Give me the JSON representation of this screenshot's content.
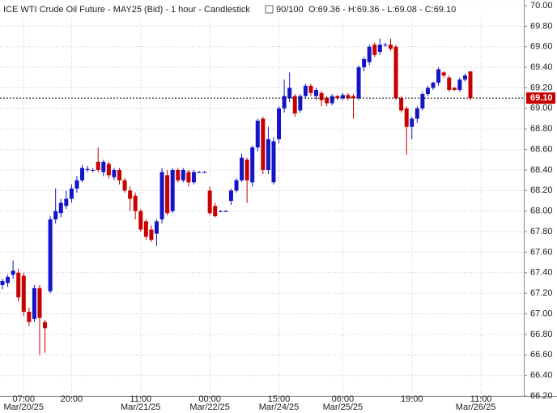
{
  "chart_data": {
    "type": "candlestick",
    "title": "ICE WTI Crude Oil Future - MAY25 (Bid) - 1 hour - Candlestick",
    "counter": "90/100",
    "ohlc_text": "O:69.36 - H:69.36 - L:69.08 - C:69.10",
    "categories": [
      null,
      null,
      null,
      null,
      "07:00",
      null,
      null,
      null,
      null,
      null,
      null,
      null,
      null,
      "20:00",
      null,
      null,
      null,
      null,
      null,
      null,
      null,
      null,
      null,
      null,
      null,
      null,
      "11:00",
      null,
      null,
      null,
      null,
      null,
      null,
      null,
      null,
      null,
      null,
      null,
      null,
      "00:00",
      null,
      null,
      null,
      null,
      null,
      null,
      null,
      null,
      null,
      null,
      null,
      null,
      "15:00",
      null,
      null,
      null,
      null,
      null,
      null,
      null,
      null,
      null,
      null,
      null,
      "06:00",
      null,
      null,
      null,
      null,
      null,
      null,
      null,
      null,
      null,
      null,
      null,
      null,
      "19:00",
      null,
      null,
      null,
      null,
      null,
      null,
      null,
      null,
      null,
      null,
      null,
      null,
      "11:00"
    ],
    "date_labels": [
      null,
      null,
      null,
      null,
      "Mar/20/25",
      null,
      null,
      null,
      null,
      null,
      null,
      null,
      null,
      null,
      null,
      null,
      null,
      null,
      null,
      null,
      null,
      null,
      null,
      null,
      null,
      null,
      "Mar/21/25",
      null,
      null,
      null,
      null,
      null,
      null,
      null,
      null,
      null,
      null,
      null,
      null,
      "Mar/22/25",
      null,
      null,
      null,
      null,
      null,
      null,
      null,
      null,
      null,
      null,
      null,
      null,
      "Mar/24/25",
      null,
      null,
      null,
      null,
      null,
      null,
      null,
      null,
      null,
      null,
      null,
      "Mar/25/25",
      null,
      null,
      null,
      null,
      null,
      null,
      null,
      null,
      null,
      null,
      null,
      null,
      null,
      null,
      null,
      null,
      null,
      null,
      null,
      null,
      null,
      null,
      null,
      null,
      "Mar/26/25"
    ],
    "open": [
      67.28,
      67.3,
      67.38,
      67.4,
      67.37,
      67.02,
      66.95,
      67.25,
      66.92,
      67.22,
      67.92,
      67.98,
      68.05,
      68.12,
      68.22,
      68.3,
      68.4,
      68.4,
      68.48,
      68.38,
      68.46,
      68.33,
      68.4,
      68.3,
      68.2,
      68.15,
      68.0,
      67.9,
      67.82,
      67.78,
      67.92,
      68.35,
      68.0,
      68.4,
      68.3,
      68.38,
      68.28,
      68.38,
      68.38,
      68.2,
      68.05,
      68.0,
      68.0,
      68.1,
      68.2,
      68.3,
      68.5,
      68.28,
      68.62,
      68.9,
      68.4,
      68.28,
      68.7,
      69.0,
      69.1,
      69.12,
      68.98,
      69.12,
      69.22,
      69.12,
      69.15,
      69.1,
      69.05,
      69.12,
      69.1,
      69.13,
      69.12,
      69.1,
      69.4,
      69.45,
      69.62,
      69.55,
      69.62,
      69.62,
      69.6,
      69.1,
      69.0,
      68.82,
      68.9,
      69.0,
      69.14,
      69.2,
      69.25,
      69.35,
      69.3,
      69.2,
      69.18,
      69.28,
      69.36,
      null,
      null
    ],
    "high": [
      67.34,
      67.38,
      67.52,
      67.44,
      67.4,
      67.06,
      67.28,
      67.28,
      66.94,
      67.95,
      68.22,
      68.12,
      68.2,
      68.26,
      68.34,
      68.45,
      68.44,
      68.42,
      68.62,
      68.5,
      68.48,
      68.42,
      68.42,
      68.32,
      68.24,
      68.18,
      68.02,
      67.92,
      67.86,
      67.92,
      68.42,
      68.4,
      68.42,
      68.42,
      68.42,
      68.4,
      68.4,
      68.39,
      68.39,
      68.24,
      68.08,
      68.01,
      68.01,
      68.22,
      68.32,
      68.56,
      68.52,
      68.64,
      68.9,
      68.92,
      68.82,
      68.72,
      69.02,
      69.28,
      69.35,
      69.14,
      69.14,
      69.24,
      69.24,
      69.2,
      69.17,
      69.12,
      69.14,
      69.13,
      69.15,
      69.15,
      69.14,
      69.42,
      69.5,
      69.62,
      69.64,
      69.68,
      69.64,
      69.68,
      69.62,
      69.12,
      69.02,
      68.92,
      69.02,
      69.16,
      69.22,
      69.26,
      69.4,
      69.36,
      69.32,
      69.21,
      69.3,
      69.34,
      69.36,
      null,
      null
    ],
    "low": [
      67.24,
      67.26,
      67.34,
      67.12,
      66.98,
      66.88,
      66.92,
      66.6,
      66.62,
      67.2,
      67.88,
      67.94,
      68.02,
      68.08,
      68.18,
      68.28,
      68.38,
      68.38,
      68.38,
      68.34,
      68.32,
      68.3,
      68.26,
      68.18,
      68.0,
      67.92,
      67.8,
      67.72,
      67.7,
      67.66,
      67.88,
      67.96,
      67.98,
      68.28,
      68.28,
      68.24,
      68.26,
      68.37,
      68.37,
      67.96,
      67.94,
      67.99,
      67.99,
      68.06,
      68.18,
      68.28,
      68.08,
      68.24,
      68.58,
      68.36,
      68.36,
      68.26,
      68.66,
      68.96,
      69.06,
      68.92,
      68.96,
      69.1,
      69.12,
      69.08,
      69.02,
      69.02,
      69.03,
      69.08,
      69.08,
      69.08,
      68.9,
      69.08,
      69.36,
      69.42,
      69.5,
      69.52,
      69.6,
      69.56,
      69.08,
      68.96,
      68.55,
      68.7,
      68.86,
      68.98,
      69.12,
      69.18,
      69.22,
      69.3,
      69.16,
      69.17,
      69.16,
      69.26,
      69.08,
      null,
      null
    ],
    "close": [
      67.32,
      67.36,
      67.42,
      67.16,
      67.02,
      66.92,
      67.25,
      66.96,
      66.86,
      67.92,
      68.0,
      68.08,
      68.12,
      68.22,
      68.3,
      68.42,
      68.41,
      68.4,
      68.4,
      68.48,
      68.35,
      68.4,
      68.3,
      68.2,
      68.12,
      68.0,
      67.82,
      67.75,
      67.72,
      67.9,
      68.38,
      67.98,
      68.4,
      68.3,
      68.4,
      68.28,
      68.38,
      68.38,
      68.38,
      67.98,
      67.95,
      68.0,
      68.0,
      68.2,
      68.3,
      68.52,
      68.3,
      68.62,
      68.88,
      68.4,
      68.7,
      68.68,
      69.0,
      69.12,
      69.2,
      68.95,
      69.12,
      69.22,
      69.15,
      69.18,
      69.08,
      69.05,
      69.12,
      69.1,
      69.13,
      69.1,
      69.1,
      69.4,
      69.48,
      69.6,
      69.52,
      69.62,
      69.62,
      69.58,
      69.1,
      68.98,
      68.82,
      68.9,
      69.0,
      69.14,
      69.2,
      69.25,
      69.38,
      69.32,
      69.18,
      69.18,
      69.28,
      69.32,
      69.1,
      null,
      null
    ],
    "up_color": "#1414c8",
    "down_color": "#c80000",
    "ylim": [
      66.2,
      70.0
    ],
    "yticks": [
      {
        "value": 66.2,
        "label": "66.20"
      },
      {
        "value": 66.4,
        "label": "66.40"
      },
      {
        "value": 66.6,
        "label": "66.60"
      },
      {
        "value": 66.8,
        "label": "66.80"
      },
      {
        "value": 67.0,
        "label": "67.00"
      },
      {
        "value": 67.2,
        "label": "67.20"
      },
      {
        "value": 67.4,
        "label": "67.40"
      },
      {
        "value": 67.6,
        "label": "67.60"
      },
      {
        "value": 67.8,
        "label": "67.80"
      },
      {
        "value": 68.0,
        "label": "68.00"
      },
      {
        "value": 68.2,
        "label": "68.20"
      },
      {
        "value": 68.4,
        "label": "68.40"
      },
      {
        "value": 68.6,
        "label": "68.60"
      },
      {
        "value": 68.8,
        "label": "68.80"
      },
      {
        "value": 69.0,
        "label": "69.00"
      },
      {
        "value": 69.2,
        "label": "69.20"
      },
      {
        "value": 69.4,
        "label": "69.40"
      },
      {
        "value": 69.6,
        "label": "69.60"
      },
      {
        "value": 69.8,
        "label": "69.80"
      },
      {
        "value": 70.0,
        "label": "70.00"
      }
    ],
    "last_price": {
      "value": 69.1,
      "label": "69.10"
    },
    "grid": true
  }
}
